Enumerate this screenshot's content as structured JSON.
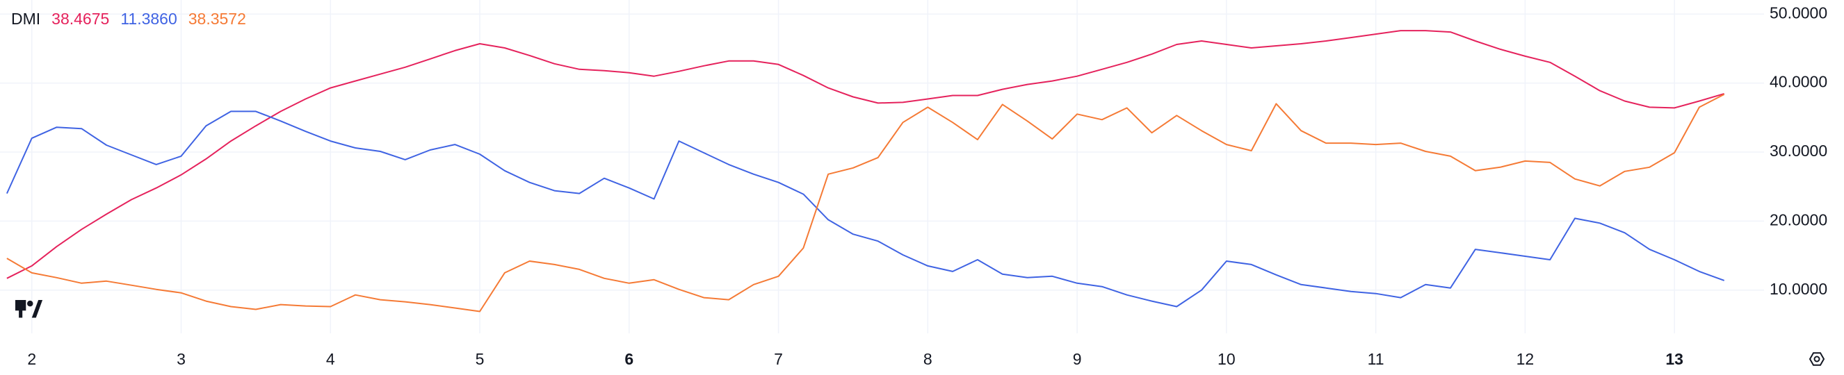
{
  "chart_data": {
    "type": "line",
    "legend_title": "DMI",
    "x": [
      1.8333,
      2,
      2.1667,
      2.3333,
      2.5,
      2.6667,
      2.8333,
      3,
      3.1667,
      3.3333,
      3.5,
      3.6667,
      3.8333,
      4,
      4.1667,
      4.3333,
      4.5,
      4.6667,
      4.8333,
      5,
      5.1667,
      5.3333,
      5.5,
      5.6667,
      5.8333,
      6,
      6.1667,
      6.3333,
      6.5,
      6.6667,
      6.8333,
      7,
      7.1667,
      7.3333,
      7.5,
      7.6667,
      7.8333,
      8,
      8.1667,
      8.3333,
      8.5,
      8.6667,
      8.8333,
      9,
      9.1667,
      9.3333,
      9.5,
      9.6667,
      9.8333,
      10,
      10.1667,
      10.3333,
      10.5,
      10.6667,
      10.8333,
      11,
      11.1667,
      11.3333,
      11.5,
      11.6667,
      11.8333,
      12,
      12.1667,
      12.3333,
      12.5,
      12.6667,
      12.8333,
      13,
      13.1667,
      13.3333
    ],
    "series": [
      {
        "name": "38.4675",
        "current_value_label": "38.4675",
        "color": "#e5225c",
        "values": [
          11.7,
          13.5,
          16.3,
          18.8,
          21,
          23.1,
          24.8,
          26.7,
          29,
          31.6,
          33.8,
          35.9,
          37.7,
          39.3,
          40.3,
          41.3,
          42.3,
          43.5,
          44.7,
          45.7,
          45.1,
          44,
          42.8,
          42,
          41.8,
          41.5,
          41,
          41.7,
          42.5,
          43.2,
          43.2,
          42.7,
          41.1,
          39.3,
          38,
          37.1,
          37.2,
          37.7,
          38.2,
          38.2,
          39.1,
          39.8,
          40.3,
          41,
          42,
          43,
          44.2,
          45.6,
          46.1,
          45.6,
          45.1,
          45.4,
          45.7,
          46.1,
          46.6,
          47.1,
          47.6,
          47.6,
          47.4,
          46.1,
          44.9,
          43.9,
          43,
          41,
          38.9,
          37.4,
          36.5,
          36.4,
          37.4,
          38.4675
        ]
      },
      {
        "name": "11.3860",
        "current_value_label": "11.3860",
        "color": "#3f63e3",
        "values": [
          24,
          32,
          33.6,
          33.4,
          31,
          29.6,
          28.2,
          29.4,
          33.8,
          35.9,
          35.9,
          34.5,
          33,
          31.6,
          30.6,
          30.1,
          28.9,
          30.3,
          31.1,
          29.7,
          27.3,
          25.6,
          24.4,
          24,
          26.2,
          24.8,
          23.2,
          31.6,
          29.9,
          28.2,
          26.8,
          25.6,
          23.9,
          20.2,
          18.1,
          17.1,
          15.1,
          13.5,
          12.7,
          14.4,
          12.3,
          11.8,
          12,
          11,
          10.5,
          9.3,
          8.4,
          7.6,
          10,
          14.2,
          13.7,
          12.2,
          10.8,
          10.3,
          9.8,
          9.5,
          8.9,
          10.8,
          10.3,
          15.9,
          15.4,
          14.9,
          14.4,
          20.4,
          19.7,
          18.3,
          15.9,
          14.4,
          12.7,
          11.386
        ]
      },
      {
        "name": "38.3572",
        "current_value_label": "38.3572",
        "color": "#f57a35",
        "values": [
          14.6,
          12.5,
          11.8,
          11,
          11.3,
          10.7,
          10.1,
          9.6,
          8.4,
          7.6,
          7.2,
          7.9,
          7.7,
          7.6,
          9.3,
          8.6,
          8.3,
          7.9,
          7.4,
          6.9,
          12.5,
          14.2,
          13.7,
          13,
          11.7,
          11,
          11.5,
          10.1,
          8.9,
          8.6,
          10.8,
          12,
          16.1,
          26.8,
          27.7,
          29.2,
          34.3,
          36.5,
          34.3,
          31.8,
          36.9,
          34.5,
          31.9,
          35.5,
          34.7,
          36.4,
          32.8,
          35.3,
          33.1,
          31.1,
          30.2,
          37,
          33.1,
          31.3,
          31.3,
          31.1,
          31.3,
          30.1,
          29.4,
          27.3,
          27.8,
          28.7,
          28.5,
          26.1,
          25.1,
          27.2,
          27.8,
          29.9,
          36.5,
          38.3572
        ]
      }
    ],
    "xlim": [
      1.787,
      13.6
    ],
    "xticks": [
      2,
      3,
      4,
      5,
      6,
      7,
      8,
      9,
      10,
      11,
      12,
      13
    ],
    "xticks_bold": [
      6,
      13
    ],
    "ylim": [
      3.73,
      52.04
    ],
    "yticks": [
      {
        "value": 10,
        "label": "10.0000"
      },
      {
        "value": 20,
        "label": "20.0000"
      },
      {
        "value": 30,
        "label": "30.0000"
      },
      {
        "value": 40,
        "label": "40.0000"
      },
      {
        "value": 50,
        "label": "50.0000"
      }
    ],
    "grid": true
  }
}
